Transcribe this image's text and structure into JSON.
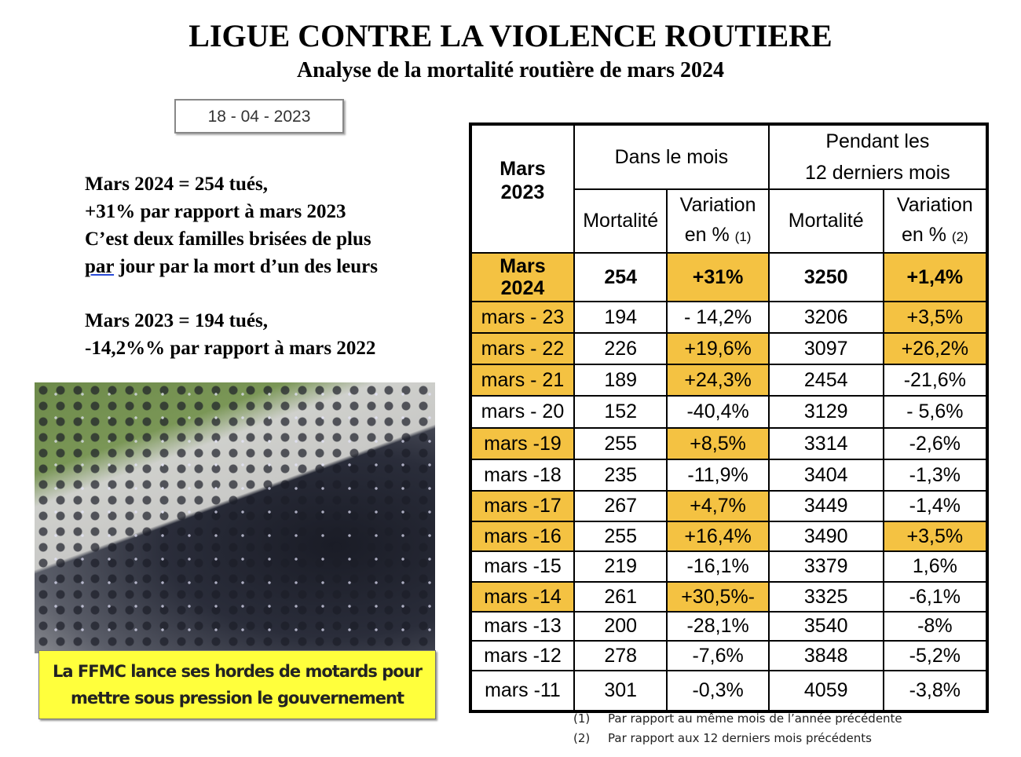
{
  "header": {
    "title": "LIGUE CONTRE LA VIOLENCE ROUTIERE",
    "subtitle": "Analyse de la mortalité routière de mars 2024",
    "date": "18 - 04 - 2023"
  },
  "summary": {
    "p1": [
      "Mars 2024 = 254 tués,",
      "+31% par rapport à mars 2023",
      "C’est deux familles brisées de plus"
    ],
    "p1_last_u": "par",
    "p1_last_rest": " jour par la mort d’un des leurs",
    "p2": [
      "Mars 2023 = 194 tués,",
      "-14,2%% par rapport à mars 2022"
    ]
  },
  "photo": {
    "caption_line1": "La FFMC lance ses hordes de motards pour",
    "caption_line2": "mettre sous pression le gouvernement"
  },
  "table": {
    "corner": "Mars 2023",
    "group1": "Dans le mois",
    "group2_line1": "Pendant les",
    "group2_line2": "12 derniers mois",
    "col_mortalite": "Mortalité",
    "col_variation": "Variation",
    "col_en": "en %",
    "ref1": "(1)",
    "ref2": "(2)",
    "highlight_color": "#f4c242",
    "current": {
      "label": "Mars 2024",
      "month": "254",
      "month_var": "+31%",
      "year": "3250",
      "year_var": "+1,4%"
    },
    "rows": [
      {
        "label": "mars - 23",
        "month": "194",
        "month_var": "- 14,2%",
        "year": "3206",
        "year_var": "+3,5%",
        "hl": [
          1,
          0,
          0,
          0,
          1
        ]
      },
      {
        "label": "mars - 22",
        "month": "226",
        "month_var": "+19,6%",
        "year": "3097",
        "year_var": "+26,2%",
        "hl": [
          1,
          0,
          1,
          0,
          1
        ]
      },
      {
        "label": "mars - 21",
        "month": "189",
        "month_var": "+24,3%",
        "year": "2454",
        "year_var": "-21,6%",
        "hl": [
          1,
          0,
          1,
          0,
          0
        ]
      },
      {
        "label": "mars - 20",
        "month": "152",
        "month_var": "-40,4%",
        "year": "3129",
        "year_var": "- 5,6%",
        "hl": [
          0,
          0,
          0,
          0,
          0
        ]
      },
      {
        "label": "mars -19",
        "month": "255",
        "month_var": "+8,5%",
        "year": "3314",
        "year_var": "-2,6%",
        "hl": [
          1,
          0,
          1,
          0,
          0
        ]
      },
      {
        "label": "mars -18",
        "month": "235",
        "month_var": "-11,9%",
        "year": "3404",
        "year_var": "-1,3%",
        "hl": [
          0,
          0,
          0,
          0,
          0
        ]
      },
      {
        "label": "mars -17",
        "month": "267",
        "month_var": "+4,7%",
        "year": "3449",
        "year_var": "-1,4%",
        "hl": [
          1,
          0,
          1,
          0,
          0
        ]
      },
      {
        "label": "mars -16",
        "month": "255",
        "month_var": "+16,4%",
        "year": "3490",
        "year_var": "+3,5%",
        "hl": [
          1,
          0,
          1,
          0,
          1
        ]
      },
      {
        "label": "mars -15",
        "month": "219",
        "month_var": "-16,1%",
        "year": "3379",
        "year_var": "1,6%",
        "hl": [
          0,
          0,
          0,
          0,
          0
        ]
      },
      {
        "label": "mars -14",
        "month": "261",
        "month_var": "+30,5%-",
        "year": "3325",
        "year_var": "-6,1%",
        "hl": [
          1,
          0,
          1,
          0,
          0
        ]
      },
      {
        "label": "mars -13",
        "month": "200",
        "month_var": "-28,1%",
        "year": "3540",
        "year_var": "-8%",
        "hl": [
          0,
          0,
          0,
          0,
          0
        ]
      },
      {
        "label": "mars -12",
        "month": "278",
        "month_var": "-7,6%",
        "year": "3848",
        "year_var": "-5,2%",
        "hl": [
          0,
          0,
          0,
          0,
          0
        ]
      },
      {
        "label": "mars -11",
        "month": "301",
        "month_var": "-0,3%",
        "year": "4059",
        "year_var": "-3,8%",
        "hl": [
          0,
          0,
          0,
          0,
          0
        ]
      }
    ]
  },
  "footnotes": [
    {
      "num": "(1)",
      "text": "Par rapport au même mois de l’année précédente"
    },
    {
      "num": "(2)",
      "text": "Par rapport aux 12 derniers mois précédents"
    }
  ]
}
